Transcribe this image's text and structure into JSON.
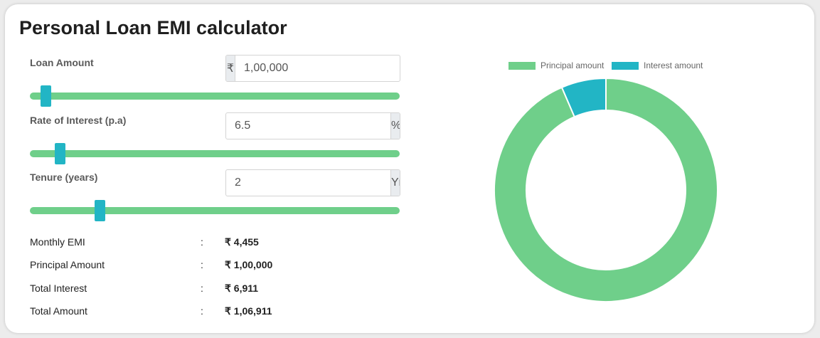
{
  "title": "Personal Loan EMI calculator",
  "inputs": {
    "loan_amount": {
      "label": "Loan Amount",
      "prefix": "₹",
      "value": "1,00,000",
      "slider_fraction": 0.03
    },
    "rate": {
      "label": "Rate of Interest (p.a)",
      "suffix": "%",
      "value": "6.5",
      "slider_fraction": 0.07
    },
    "tenure": {
      "label": "Tenure (years)",
      "suffix": "Yr",
      "value": "2",
      "slider_fraction": 0.18
    }
  },
  "summary": [
    {
      "label": "Monthly EMI",
      "sep": ":",
      "value": "₹ 4,455"
    },
    {
      "label": "Principal Amount",
      "sep": ":",
      "value": "₹ 1,00,000"
    },
    {
      "label": "Total Interest",
      "sep": ":",
      "value": "₹ 6,911"
    },
    {
      "label": "Total Amount",
      "sep": ":",
      "value": "₹ 1,06,911"
    }
  ],
  "chart_data": {
    "type": "pie",
    "categories": [
      "Principal amount",
      "Interest amount"
    ],
    "values": [
      100000,
      6911
    ],
    "colors": [
      "#6fcf8a",
      "#22b5c5"
    ],
    "legend": "top"
  }
}
